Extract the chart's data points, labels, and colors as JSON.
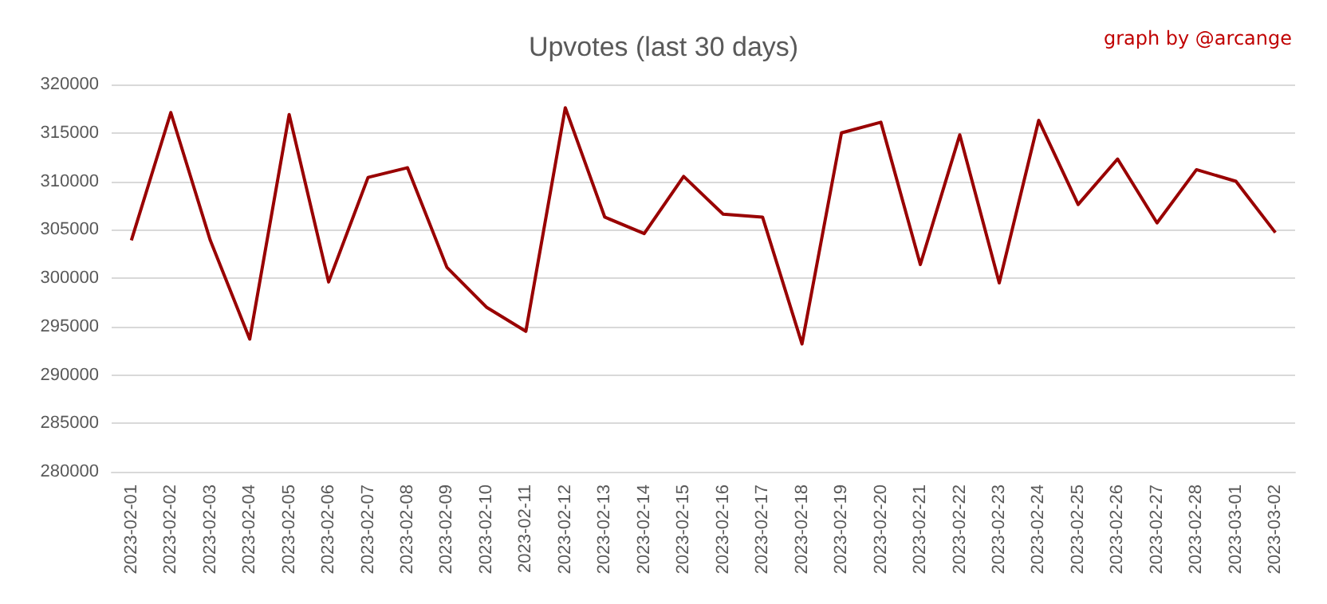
{
  "chart_data": {
    "type": "line",
    "title": "Upvotes (last 30 days)",
    "annotations": [
      "graph by @arcange"
    ],
    "categories": [
      "2023-02-01",
      "2023-02-02",
      "2023-02-03",
      "2023-02-04",
      "2023-02-05",
      "2023-02-06",
      "2023-02-07",
      "2023-02-08",
      "2023-02-09",
      "2023-02-10",
      "2023-02-11",
      "2023-02-12",
      "2023-02-13",
      "2023-02-14",
      "2023-02-15",
      "2023-02-16",
      "2023-02-17",
      "2023-02-18",
      "2023-02-19",
      "2023-02-20",
      "2023-02-21",
      "2023-02-22",
      "2023-02-23",
      "2023-02-24",
      "2023-02-25",
      "2023-02-26",
      "2023-02-27",
      "2023-02-28",
      "2023-03-01",
      "2023-03-02"
    ],
    "series": [
      {
        "color": "#990000",
        "values": [
          303900,
          317100,
          303900,
          293700,
          316900,
          299600,
          310400,
          311400,
          301100,
          297000,
          294500,
          317600,
          306300,
          304600,
          310500,
          306600,
          306300,
          293200,
          315000,
          316100,
          301400,
          314800,
          299500,
          316300,
          307600,
          312300,
          305700,
          311200,
          310000,
          304700
        ]
      }
    ],
    "ylim": [
      280000,
      320000
    ],
    "yticks": [
      280000,
      285000,
      290000,
      295000,
      300000,
      305000,
      310000,
      315000,
      320000
    ],
    "grid": "y",
    "marker": "none",
    "line_style": "solid"
  }
}
